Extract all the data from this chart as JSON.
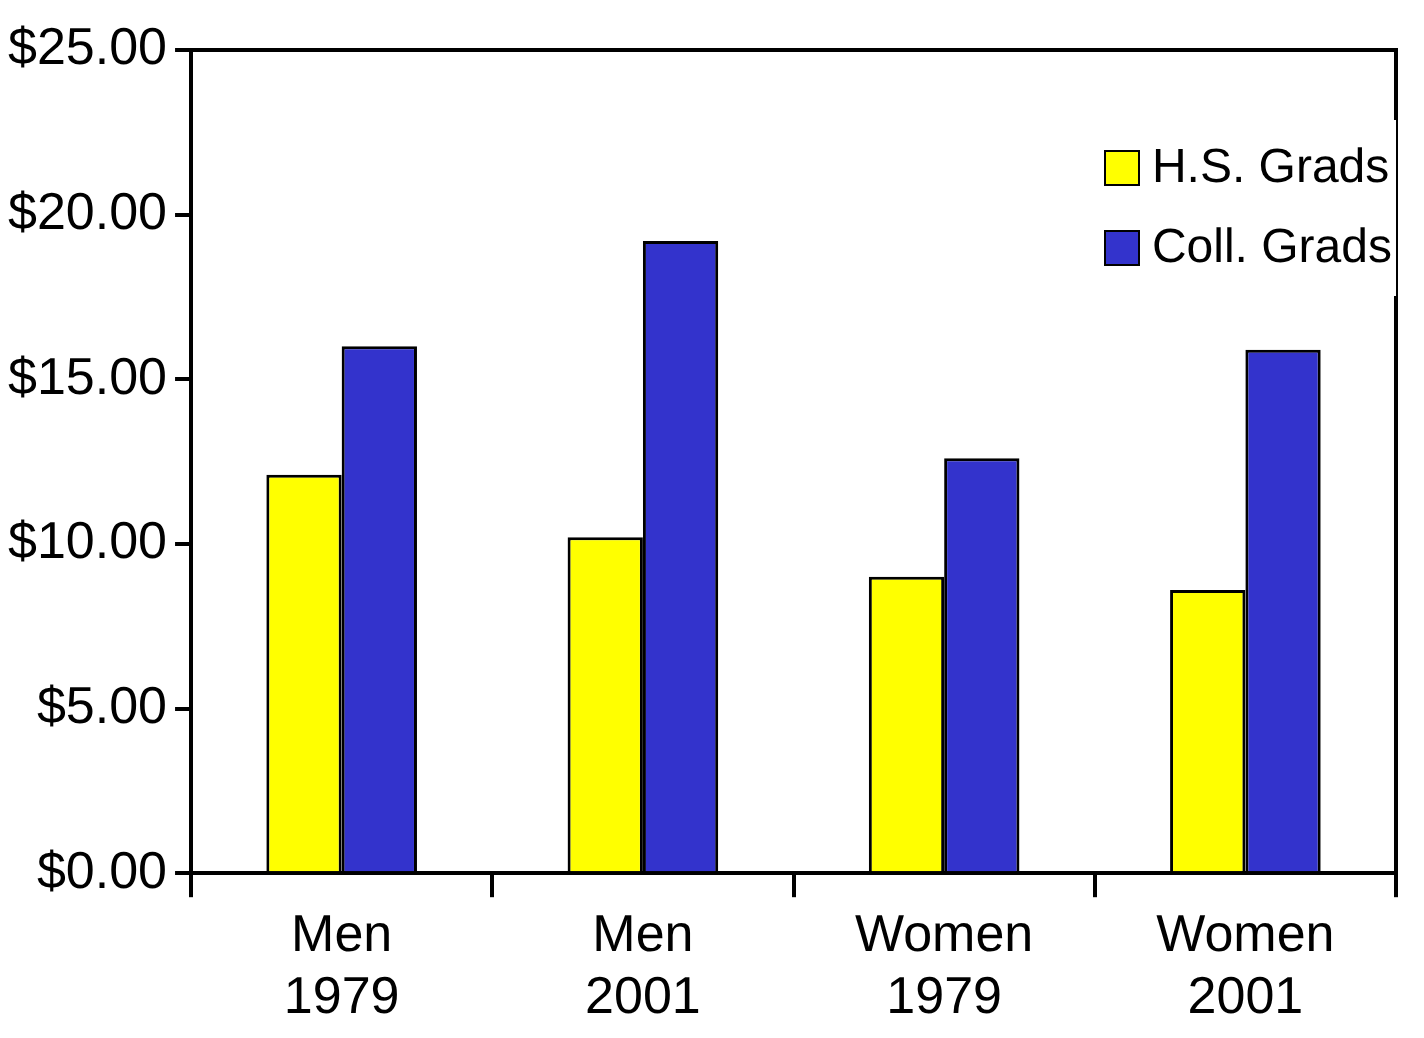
{
  "chart_data": {
    "type": "bar",
    "categories": [
      "Men 1979",
      "Men 2001",
      "Women 1979",
      "Women 2001"
    ],
    "series": [
      {
        "name": "H.S. Grads",
        "color": "#ffff00",
        "values": [
          12.1,
          10.2,
          9.0,
          8.6
        ]
      },
      {
        "name": "Coll. Grads",
        "color": "#3333cc",
        "values": [
          16.0,
          19.2,
          12.6,
          15.9
        ]
      }
    ],
    "ylim": [
      0,
      25
    ],
    "yticks": [
      {
        "value": 0,
        "label": "$0.00"
      },
      {
        "value": 5,
        "label": "$5.00"
      },
      {
        "value": 10,
        "label": "$10.00"
      },
      {
        "value": 15,
        "label": "$15.00"
      },
      {
        "value": 20,
        "label": "$20.00"
      },
      {
        "value": 25,
        "label": "$25.00"
      }
    ],
    "legend": "top right"
  }
}
